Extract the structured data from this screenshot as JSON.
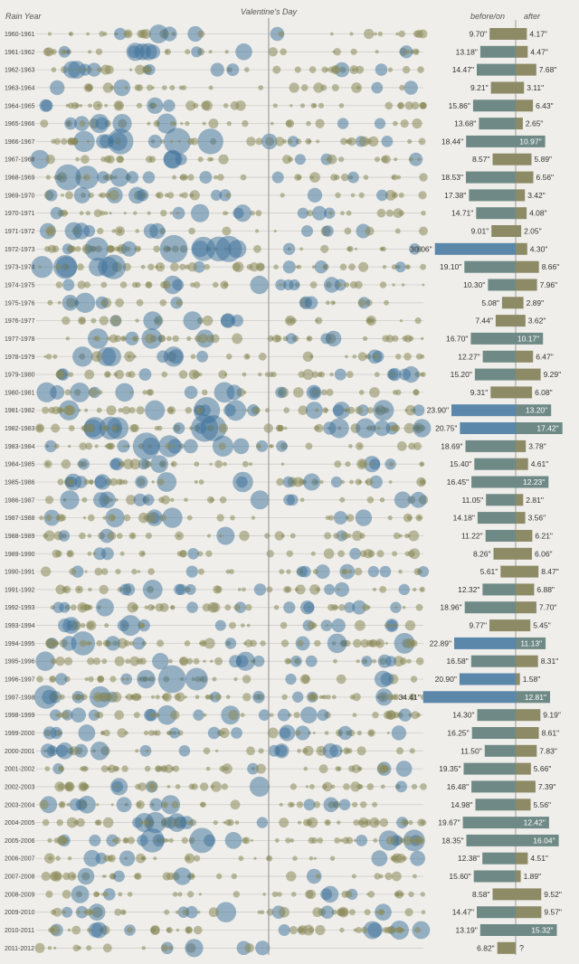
{
  "chart_data": {
    "type": "bubble-timeline-with-bars",
    "title": "Valentine's Day",
    "headers": {
      "rain_year": "Rain Year",
      "before": "before/on",
      "after": "after",
      "marker": "Valentine's Day"
    },
    "units": "\"",
    "unknown_value": "?",
    "colors": {
      "background": "#efeeea",
      "bubble_small": "#8a8a5a",
      "bubble_large": "#3b6f9a",
      "bar_low": "#8d8a66",
      "bar_mid": "#6f8a86",
      "bar_high": "#5b87ab",
      "row_line": "#cfcfc8",
      "marker_line": "#8f8f8f"
    },
    "rows": [
      {
        "year": "1960-1961",
        "before": 9.7,
        "after": 4.17
      },
      {
        "year": "1961-1962",
        "before": 13.18,
        "after": 4.47
      },
      {
        "year": "1962-1963",
        "before": 14.47,
        "after": 7.68
      },
      {
        "year": "1963-1964",
        "before": 9.21,
        "after": 3.11
      },
      {
        "year": "1964-1965",
        "before": 15.86,
        "after": 6.43
      },
      {
        "year": "1965-1966",
        "before": 13.68,
        "after": 2.65
      },
      {
        "year": "1966-1967",
        "before": 18.44,
        "after": 10.97
      },
      {
        "year": "1967-1968",
        "before": 8.57,
        "after": 5.89
      },
      {
        "year": "1968-1969",
        "before": 18.53,
        "after": 6.56
      },
      {
        "year": "1969-1970",
        "before": 17.38,
        "after": 3.42
      },
      {
        "year": "1970-1971",
        "before": 14.71,
        "after": 4.08
      },
      {
        "year": "1971-1972",
        "before": 9.01,
        "after": 2.05
      },
      {
        "year": "1972-1973",
        "before": 30.06,
        "after": 4.3
      },
      {
        "year": "1973-1974",
        "before": 19.1,
        "after": 8.66
      },
      {
        "year": "1974-1975",
        "before": 10.3,
        "after": 7.96
      },
      {
        "year": "1975-1976",
        "before": 5.08,
        "after": 2.89
      },
      {
        "year": "1976-1977",
        "before": 7.44,
        "after": 3.62
      },
      {
        "year": "1977-1978",
        "before": 16.7,
        "after": 10.17
      },
      {
        "year": "1978-1979",
        "before": 12.27,
        "after": 6.47
      },
      {
        "year": "1979-1980",
        "before": 15.2,
        "after": 9.29
      },
      {
        "year": "1980-1981",
        "before": 9.31,
        "after": 6.08
      },
      {
        "year": "1981-1982",
        "before": 23.9,
        "after": 13.2
      },
      {
        "year": "1982-1983",
        "before": 20.75,
        "after": 17.42
      },
      {
        "year": "1983-1984",
        "before": 18.69,
        "after": 3.78
      },
      {
        "year": "1984-1985",
        "before": 15.4,
        "after": 4.61
      },
      {
        "year": "1985-1986",
        "before": 16.45,
        "after": 12.23
      },
      {
        "year": "1986-1987",
        "before": 11.05,
        "after": 2.81
      },
      {
        "year": "1987-1988",
        "before": 14.18,
        "after": 3.56
      },
      {
        "year": "1988-1989",
        "before": 11.22,
        "after": 6.21
      },
      {
        "year": "1989-1990",
        "before": 8.26,
        "after": 6.06
      },
      {
        "year": "1990-1991",
        "before": 5.61,
        "after": 8.47
      },
      {
        "year": "1991-1992",
        "before": 12.32,
        "after": 6.88
      },
      {
        "year": "1992-1993",
        "before": 18.96,
        "after": 7.7
      },
      {
        "year": "1993-1994",
        "before": 9.77,
        "after": 5.45
      },
      {
        "year": "1994-1995",
        "before": 22.89,
        "after": 11.13
      },
      {
        "year": "1995-1996",
        "before": 16.58,
        "after": 8.31
      },
      {
        "year": "1996-1997",
        "before": 20.9,
        "after": 1.58
      },
      {
        "year": "1997-1998",
        "before": 34.41,
        "after": 12.81
      },
      {
        "year": "1998-1999",
        "before": 14.3,
        "after": 9.19
      },
      {
        "year": "1999-2000",
        "before": 16.25,
        "after": 8.61
      },
      {
        "year": "2000-2001",
        "before": 11.5,
        "after": 7.83
      },
      {
        "year": "2001-2002",
        "before": 19.35,
        "after": 5.66
      },
      {
        "year": "2002-2003",
        "before": 16.48,
        "after": 7.39
      },
      {
        "year": "2003-2004",
        "before": 14.98,
        "after": 5.56
      },
      {
        "year": "2004-2005",
        "before": 19.67,
        "after": 12.42
      },
      {
        "year": "2005-2006",
        "before": 18.35,
        "after": 16.04
      },
      {
        "year": "2006-2007",
        "before": 12.38,
        "after": 4.51
      },
      {
        "year": "2007-2008",
        "before": 15.6,
        "after": 1.89
      },
      {
        "year": "2008-2009",
        "before": 8.58,
        "after": 9.52
      },
      {
        "year": "2009-2010",
        "before": 14.47,
        "after": 9.57
      },
      {
        "year": "2010-2011",
        "before": 13.19,
        "after": 15.32
      },
      {
        "year": "2011-2012",
        "before": 6.82,
        "after": null
      }
    ]
  }
}
